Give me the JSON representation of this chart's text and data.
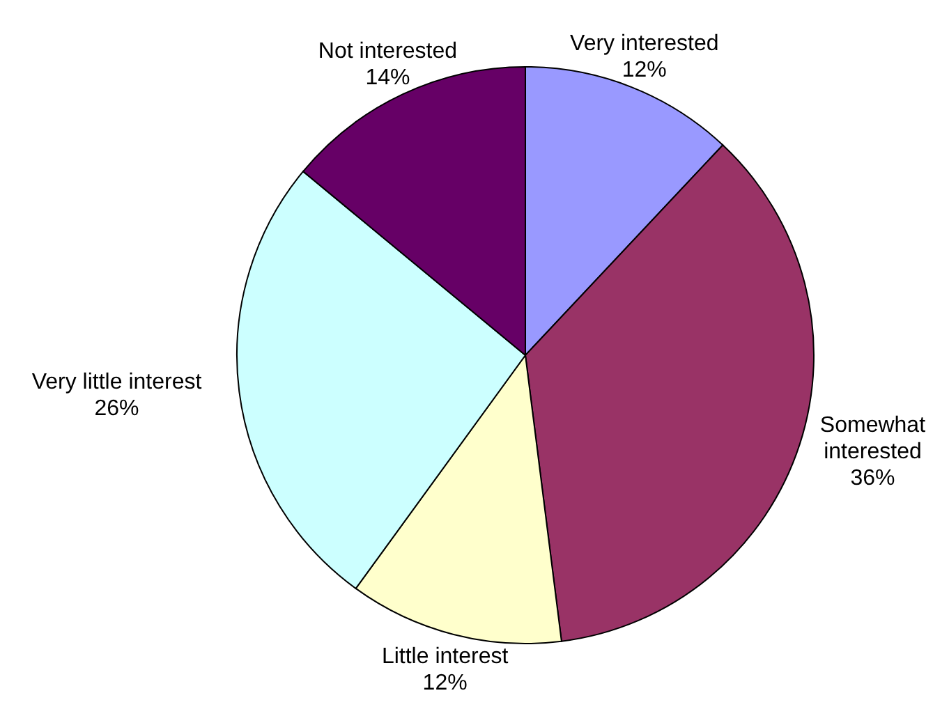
{
  "chart_data": {
    "type": "pie",
    "categories": [
      "Very interested",
      "Somewhat interested",
      "Little interest",
      "Very little interest",
      "Not interested"
    ],
    "values": [
      12,
      36,
      12,
      26,
      14
    ],
    "value_labels": [
      "12%",
      "36%",
      "12%",
      "26%",
      "14%"
    ],
    "colors": [
      "#9999ff",
      "#993366",
      "#ffffcc",
      "#ccffff",
      "#660066"
    ]
  }
}
